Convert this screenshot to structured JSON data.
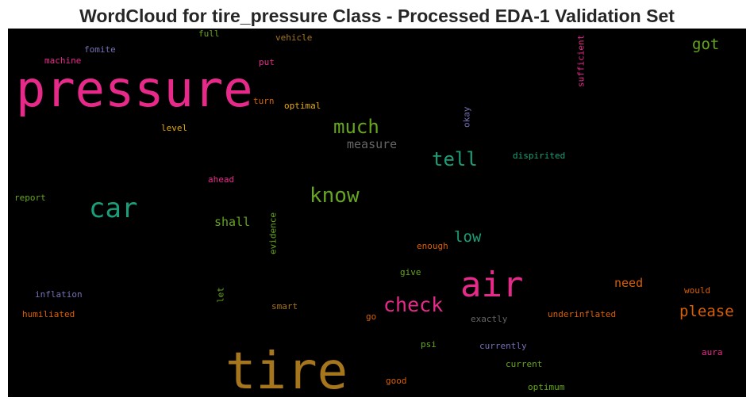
{
  "chart_data": {
    "type": "wordcloud",
    "title": "WordCloud for tire_pressure Class - Processed EDA-1 Validation Set",
    "background": "#000000",
    "palette": "Dark2",
    "words": [
      {
        "text": "pressure",
        "color": "#e7298a"
      },
      {
        "text": "tire",
        "color": "#a6761d"
      },
      {
        "text": "air",
        "color": "#e7298a"
      },
      {
        "text": "car",
        "color": "#1b9e77"
      },
      {
        "text": "know",
        "color": "#66a61e"
      },
      {
        "text": "check",
        "color": "#e7298a"
      },
      {
        "text": "much",
        "color": "#66a61e"
      },
      {
        "text": "tell",
        "color": "#1b9e77"
      },
      {
        "text": "got",
        "color": "#66a61e"
      },
      {
        "text": "low",
        "color": "#1b9e77"
      },
      {
        "text": "please",
        "color": "#d95f02"
      },
      {
        "text": "measure",
        "color": "#666666"
      },
      {
        "text": "need",
        "color": "#d95f02"
      },
      {
        "text": "shall",
        "color": "#66a61e"
      },
      {
        "text": "fomite",
        "color": "#7570b3"
      },
      {
        "text": "machine",
        "color": "#e7298a"
      },
      {
        "text": "full",
        "color": "#66a61e"
      },
      {
        "text": "vehicle",
        "color": "#a6761d"
      },
      {
        "text": "put",
        "color": "#e7298a"
      },
      {
        "text": "sufficient",
        "color": "#e7298a"
      },
      {
        "text": "turn",
        "color": "#d95f02"
      },
      {
        "text": "optimal",
        "color": "#e6ab02"
      },
      {
        "text": "okay",
        "color": "#7570b3"
      },
      {
        "text": "level",
        "color": "#e6ab02"
      },
      {
        "text": "dispirited",
        "color": "#1b9e77"
      },
      {
        "text": "ahead",
        "color": "#e7298a"
      },
      {
        "text": "report",
        "color": "#66a61e"
      },
      {
        "text": "evidence",
        "color": "#66a61e"
      },
      {
        "text": "enough",
        "color": "#d95f02"
      },
      {
        "text": "give",
        "color": "#66a61e"
      },
      {
        "text": "inflation",
        "color": "#7570b3"
      },
      {
        "text": "let",
        "color": "#66a61e"
      },
      {
        "text": "smart",
        "color": "#a6761d"
      },
      {
        "text": "would",
        "color": "#d95f02"
      },
      {
        "text": "humiliated",
        "color": "#d95f02"
      },
      {
        "text": "go",
        "color": "#d95f02"
      },
      {
        "text": "exactly",
        "color": "#666666"
      },
      {
        "text": "underinflated",
        "color": "#d95f02"
      },
      {
        "text": "psi",
        "color": "#66a61e"
      },
      {
        "text": "currently",
        "color": "#7570b3"
      },
      {
        "text": "aura",
        "color": "#e7298a"
      },
      {
        "text": "current",
        "color": "#66a61e"
      },
      {
        "text": "good",
        "color": "#d95f02"
      },
      {
        "text": "optimum",
        "color": "#66a61e"
      }
    ]
  }
}
